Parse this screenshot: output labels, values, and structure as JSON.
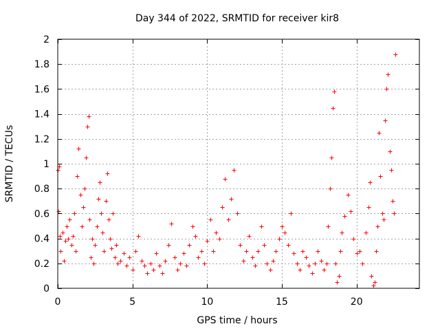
{
  "chart_data": {
    "type": "scatter",
    "title": "Day 344 of 2022, SRMTID for receiver kir8",
    "xlabel": "GPS time / hours",
    "ylabel": "SRMTID / TECUs",
    "xlim": [
      0,
      24.2
    ],
    "ylim": [
      0,
      2
    ],
    "xticks": [
      0,
      5,
      10,
      15,
      20
    ],
    "xtick_labels": [
      "0",
      "5",
      "10",
      "15",
      "20"
    ],
    "yticks": [
      0,
      0.2,
      0.4,
      0.6,
      0.8,
      1,
      1.2,
      1.4,
      1.6,
      1.8,
      2
    ],
    "ytick_labels": [
      "0",
      "0.2",
      "0.4",
      "0.6",
      "0.8",
      "1",
      "1.2",
      "1.4",
      "1.6",
      "1.8",
      "2"
    ],
    "grid": true,
    "marker": "+",
    "color": "#ff0000",
    "series": [
      {
        "name": "SRMTID",
        "x": [
          0.0,
          0.05,
          0.1,
          0.15,
          0.2,
          0.3,
          0.4,
          0.5,
          0.6,
          0.7,
          0.8,
          0.9,
          1.0,
          1.1,
          1.2,
          1.3,
          1.4,
          1.5,
          1.6,
          1.7,
          1.8,
          1.9,
          2.0,
          2.05,
          2.1,
          2.2,
          2.3,
          2.4,
          2.5,
          2.6,
          2.7,
          2.8,
          2.9,
          3.0,
          3.1,
          3.2,
          3.3,
          3.4,
          3.5,
          3.6,
          3.7,
          3.8,
          3.9,
          4.0,
          4.2,
          4.4,
          4.6,
          4.8,
          5.0,
          5.2,
          5.4,
          5.6,
          5.8,
          6.0,
          6.2,
          6.4,
          6.6,
          6.8,
          7.0,
          7.2,
          7.4,
          7.6,
          7.8,
          8.0,
          8.2,
          8.4,
          8.6,
          8.8,
          9.0,
          9.2,
          9.4,
          9.6,
          9.8,
          10.0,
          10.2,
          10.4,
          10.6,
          10.8,
          11.0,
          11.2,
          11.4,
          11.6,
          11.8,
          12.0,
          12.2,
          12.4,
          12.6,
          12.8,
          13.0,
          13.2,
          13.4,
          13.6,
          13.8,
          14.0,
          14.2,
          14.4,
          14.6,
          14.8,
          15.0,
          15.2,
          15.4,
          15.6,
          15.8,
          16.0,
          16.2,
          16.4,
          16.6,
          16.8,
          17.0,
          17.2,
          17.4,
          17.6,
          17.8,
          18.0,
          18.1,
          18.2,
          18.3,
          18.4,
          18.5,
          18.6,
          18.7,
          18.8,
          18.9,
          19.0,
          19.2,
          19.4,
          19.6,
          19.8,
          20.0,
          20.2,
          20.4,
          20.6,
          20.8,
          20.9,
          21.0,
          21.1,
          21.2,
          21.3,
          21.4,
          21.5,
          21.6,
          21.7,
          21.8,
          21.9,
          22.0,
          22.1,
          22.2,
          22.3,
          22.4,
          22.5,
          22.6
        ],
        "y": [
          0.95,
          0.62,
          0.98,
          0.42,
          0.3,
          0.45,
          0.22,
          0.38,
          0.5,
          0.4,
          0.55,
          0.35,
          0.42,
          0.6,
          0.3,
          0.9,
          1.12,
          0.75,
          0.5,
          0.65,
          0.8,
          1.05,
          1.3,
          1.38,
          0.55,
          0.25,
          0.4,
          0.2,
          0.35,
          0.5,
          0.72,
          0.85,
          0.6,
          0.45,
          0.3,
          0.7,
          0.92,
          0.55,
          0.4,
          0.32,
          0.6,
          0.25,
          0.35,
          0.2,
          0.22,
          0.28,
          0.18,
          0.25,
          0.15,
          0.3,
          0.42,
          0.22,
          0.18,
          0.12,
          0.2,
          0.15,
          0.28,
          0.18,
          0.12,
          0.22,
          0.35,
          0.52,
          0.25,
          0.15,
          0.2,
          0.28,
          0.18,
          0.35,
          0.5,
          0.42,
          0.25,
          0.3,
          0.2,
          0.38,
          0.55,
          0.3,
          0.45,
          0.4,
          0.65,
          0.88,
          0.55,
          0.72,
          0.95,
          0.6,
          0.35,
          0.22,
          0.3,
          0.42,
          0.25,
          0.18,
          0.3,
          0.5,
          0.35,
          0.2,
          0.15,
          0.22,
          0.3,
          0.4,
          0.5,
          0.45,
          0.35,
          0.6,
          0.28,
          0.2,
          0.15,
          0.3,
          0.25,
          0.18,
          0.12,
          0.2,
          0.3,
          0.22,
          0.15,
          0.2,
          0.5,
          0.8,
          1.05,
          1.45,
          1.58,
          0.2,
          0.05,
          0.1,
          0.3,
          0.45,
          0.58,
          0.75,
          0.62,
          0.4,
          0.28,
          0.3,
          0.2,
          0.45,
          0.65,
          0.85,
          0.1,
          0.02,
          0.05,
          0.3,
          0.5,
          1.25,
          0.9,
          0.6,
          0.55,
          1.35,
          1.6,
          1.72,
          1.1,
          0.95,
          0.7,
          0.6,
          1.88
        ]
      }
    ]
  }
}
